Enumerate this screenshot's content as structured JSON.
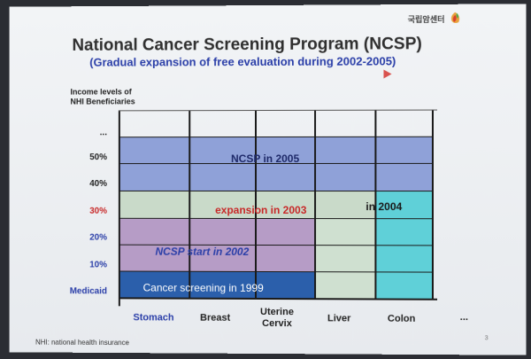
{
  "logo": {
    "text": "국립암센터"
  },
  "title": "National Cancer Screening Program (NCSP)",
  "subtitle": "(Gradual expansion of free evaluation during 2002-2005)",
  "y_axis": {
    "title_line1": "Income levels of",
    "title_line2": "NHI Beneficiaries",
    "levels": [
      "...",
      "50%",
      "40%",
      "30%",
      "20%",
      "10%",
      "Medicaid"
    ]
  },
  "x_axis": {
    "items": [
      "Stomach",
      "Breast",
      "Uterine Cervix",
      "Liver",
      "Colon",
      "..."
    ],
    "uterine_line1": "Uterine",
    "uterine_line2": "Cervix"
  },
  "regions": {
    "ncsp_2005": "NCSP in 2005",
    "expansion_2003": "expansion in 2003",
    "in_2004": "in 2004",
    "ncsp_start_2002": "NCSP start in 2002",
    "cancer_1999": "Cancer screening in 1999"
  },
  "colors": {
    "region_2005": "#8fa1d8",
    "region_2003": "#c9dac9",
    "region_2004": "#5fd0d8",
    "region_2002": "#b69cc6",
    "region_1999": "#2b5fab",
    "label_blue": "#2a3ea8",
    "label_red": "#c82828"
  },
  "footer": "NHI: national health insurance",
  "page_number": "3"
}
